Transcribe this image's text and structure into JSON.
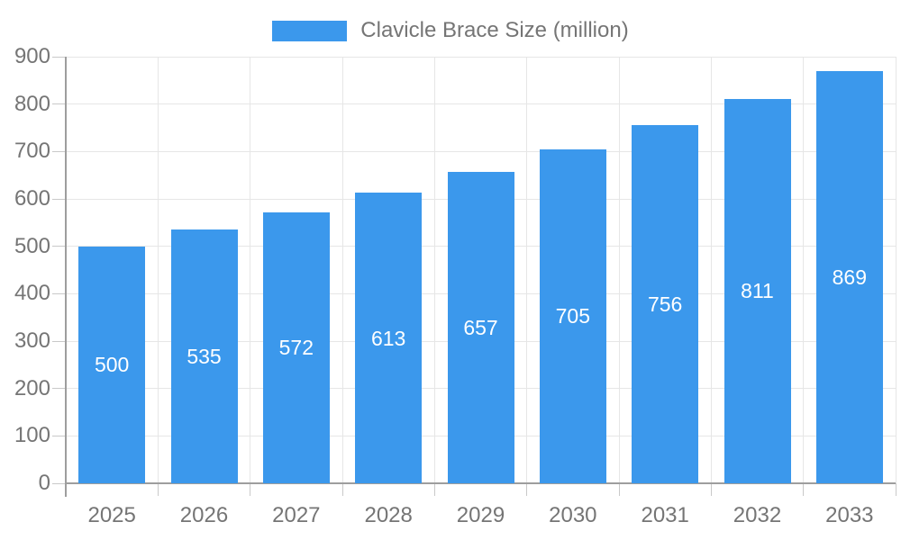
{
  "legend": {
    "label": "Clavicle Brace Size (million)"
  },
  "colors": {
    "bar": "#3B98EC",
    "grid": "#e6e6e6",
    "axis": "#9e9e9e",
    "tick": "#c9c9c9",
    "axis_text": "#757575",
    "value_text": "#ffffff"
  },
  "chart_data": {
    "type": "bar",
    "title": "",
    "xlabel": "",
    "ylabel": "",
    "categories": [
      "2025",
      "2026",
      "2027",
      "2028",
      "2029",
      "2030",
      "2031",
      "2032",
      "2033"
    ],
    "values": [
      500,
      535,
      572,
      613,
      657,
      705,
      756,
      811,
      869
    ],
    "series": [
      {
        "name": "Clavicle Brace Size (million)",
        "values": [
          500,
          535,
          572,
          613,
          657,
          705,
          756,
          811,
          869
        ]
      }
    ],
    "ylim": [
      0,
      900
    ],
    "ytick_interval": 100,
    "yticks": [
      0,
      100,
      200,
      300,
      400,
      500,
      600,
      700,
      800,
      900
    ],
    "grid": true,
    "legend_position": "top",
    "value_labels": "inside-center",
    "bar_color": "#3B98EC"
  }
}
